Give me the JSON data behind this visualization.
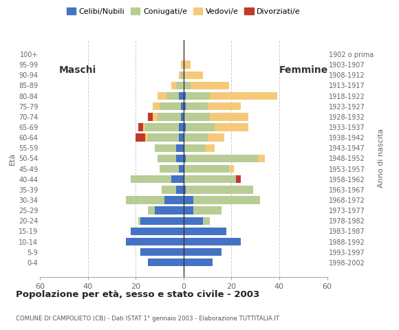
{
  "age_groups": [
    "100+",
    "95-99",
    "90-94",
    "85-89",
    "80-84",
    "75-79",
    "70-74",
    "65-69",
    "60-64",
    "55-59",
    "50-54",
    "45-49",
    "40-44",
    "35-39",
    "30-34",
    "25-29",
    "20-24",
    "15-19",
    "10-14",
    "5-9",
    "0-4"
  ],
  "birth_years": [
    "1902 o prima",
    "1903-1907",
    "1908-1912",
    "1913-1917",
    "1918-1922",
    "1923-1927",
    "1928-1932",
    "1933-1937",
    "1938-1942",
    "1943-1947",
    "1948-1952",
    "1953-1957",
    "1958-1962",
    "1963-1967",
    "1968-1972",
    "1973-1977",
    "1978-1982",
    "1983-1987",
    "1988-1992",
    "1993-1997",
    "1998-2002"
  ],
  "male": {
    "celibe": [
      0,
      0,
      0,
      0,
      2,
      1,
      1,
      2,
      2,
      3,
      3,
      2,
      5,
      3,
      8,
      12,
      18,
      22,
      24,
      18,
      15
    ],
    "coniugato": [
      0,
      0,
      1,
      3,
      5,
      9,
      10,
      14,
      13,
      9,
      8,
      8,
      17,
      6,
      16,
      3,
      1,
      0,
      0,
      0,
      0
    ],
    "vedovo": [
      0,
      1,
      1,
      2,
      4,
      3,
      2,
      1,
      1,
      0,
      0,
      0,
      0,
      0,
      0,
      0,
      0,
      0,
      0,
      0,
      0
    ],
    "divorziato": [
      0,
      0,
      0,
      0,
      0,
      0,
      2,
      2,
      4,
      0,
      0,
      0,
      0,
      0,
      0,
      0,
      0,
      0,
      0,
      0,
      0
    ]
  },
  "female": {
    "celibe": [
      0,
      0,
      0,
      0,
      1,
      1,
      0,
      1,
      0,
      0,
      1,
      0,
      0,
      1,
      4,
      4,
      8,
      18,
      24,
      16,
      12
    ],
    "coniugato": [
      0,
      0,
      0,
      3,
      10,
      9,
      11,
      12,
      10,
      9,
      30,
      19,
      22,
      28,
      28,
      12,
      3,
      0,
      0,
      0,
      0
    ],
    "vedovo": [
      0,
      3,
      8,
      16,
      28,
      14,
      16,
      14,
      7,
      4,
      3,
      2,
      0,
      0,
      0,
      0,
      0,
      0,
      0,
      0,
      0
    ],
    "divorziato": [
      0,
      0,
      0,
      0,
      0,
      0,
      0,
      0,
      0,
      0,
      0,
      0,
      2,
      0,
      0,
      0,
      0,
      0,
      0,
      0,
      0
    ]
  },
  "colors": {
    "celibe": "#4472C4",
    "coniugato": "#b8cc96",
    "vedovo": "#f5c97a",
    "divorziato": "#c0392b"
  },
  "legend_labels": [
    "Celibi/Nubili",
    "Coniugati/e",
    "Vedovi/e",
    "Divorziati/e"
  ],
  "title": "Popolazione per età, sesso e stato civile - 2003",
  "subtitle": "COMUNE DI CAMPOLIETO (CB) - Dati ISTAT 1° gennaio 2003 - Elaborazione TUTTITALIA.IT",
  "label_maschi": "Maschi",
  "label_femmine": "Femmine",
  "ylabel_left": "Età",
  "ylabel_right": "Anno di nascita",
  "xlim": 60,
  "background_color": "#ffffff",
  "grid_color": "#cccccc"
}
